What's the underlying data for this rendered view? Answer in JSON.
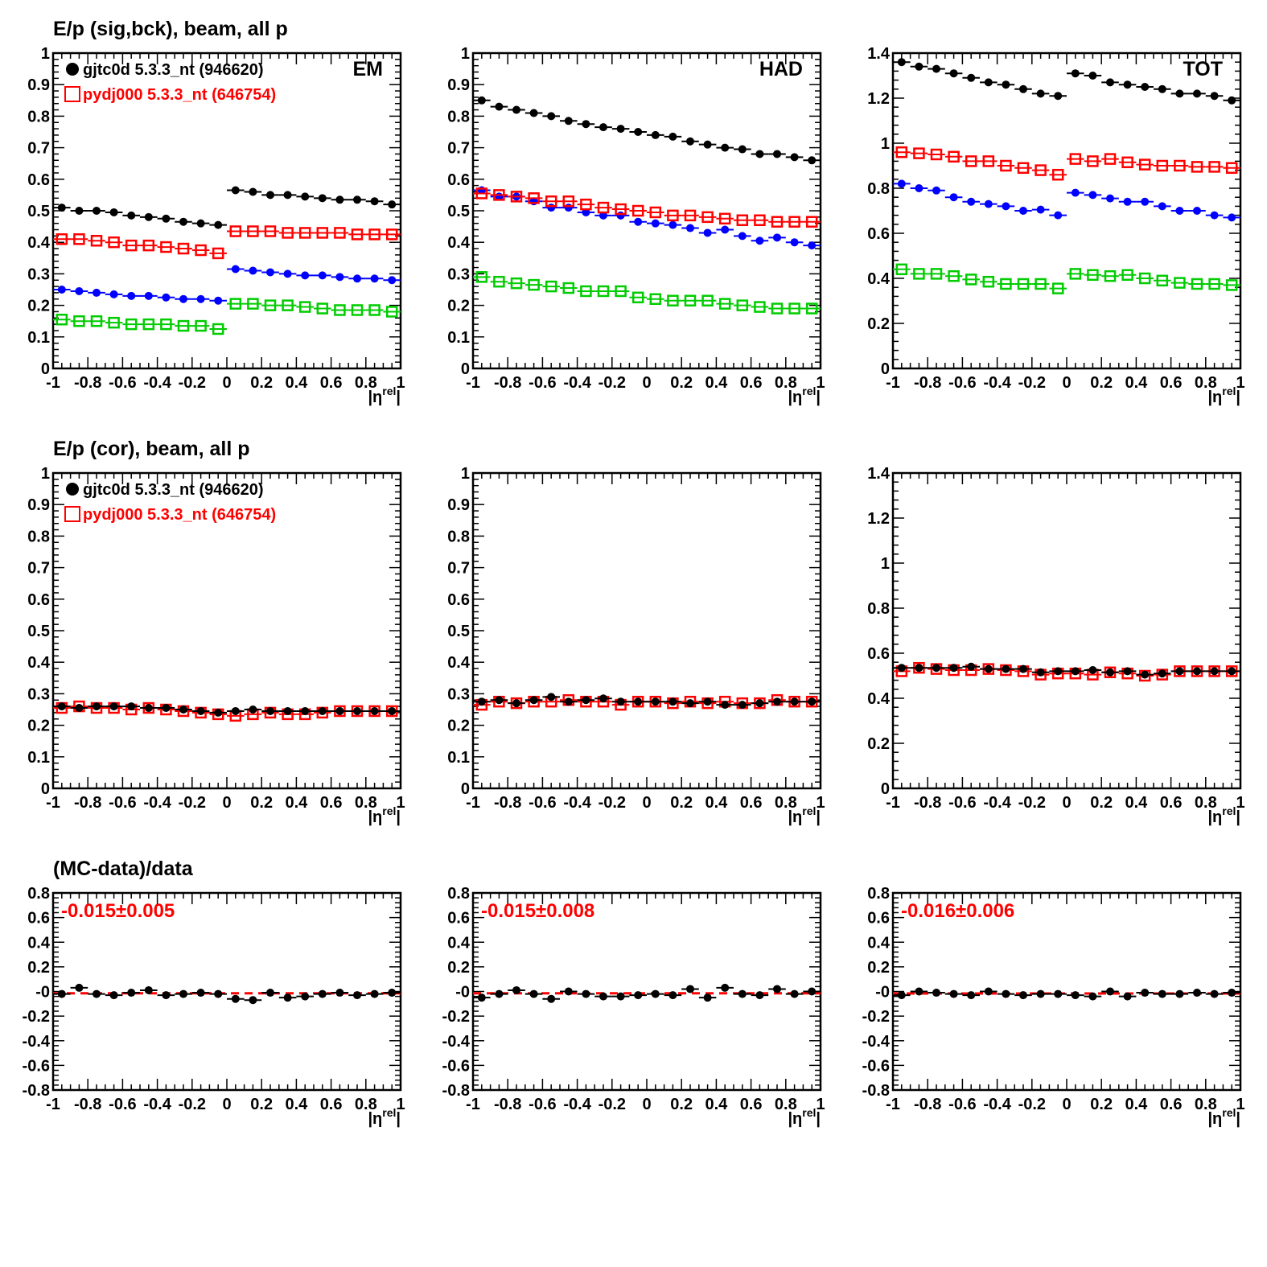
{
  "x_axis": {
    "range": [
      -1,
      1
    ],
    "tick_labels": [
      "-1",
      "-0.8",
      "-0.6",
      "-0.4",
      "-0.2",
      "0",
      "0.2",
      "0.4",
      "0.6",
      "0.8",
      "1"
    ],
    "label_main": "|η",
    "label_sup": "rel",
    "label_end": "|"
  },
  "colors": {
    "data": "#000000",
    "mc": "#ff0000",
    "sig": "#0000ff",
    "bck": "#00cc00"
  },
  "legend": {
    "data_label": "gjtc0d 5.3.3_nt (946620)",
    "mc_label": "pydj000 5.3.3_nt (646754)"
  },
  "row_titles": [
    "E/p (sig,bck), beam, all p",
    "E/p (cor), beam, all p",
    "(MC-data)/data"
  ],
  "corner_labels": [
    "EM",
    "HAD",
    "TOT"
  ],
  "y_axes": {
    "unit": {
      "range": [
        0,
        1
      ],
      "tick_labels": [
        "0",
        "0.1",
        "0.2",
        "0.3",
        "0.4",
        "0.5",
        "0.6",
        "0.7",
        "0.8",
        "0.9",
        "1"
      ]
    },
    "tot": {
      "range": [
        0,
        1.4
      ],
      "tick_labels": [
        "0",
        "0.2",
        "0.4",
        "0.6",
        "0.8",
        "1",
        "1.2",
        "1.4"
      ]
    },
    "ratio": {
      "range": [
        -0.8,
        0.8
      ],
      "tick_labels": [
        "-0.8",
        "-0.6",
        "-0.4",
        "-0.2",
        "-0",
        "0.2",
        "0.4",
        "0.6",
        "0.8"
      ]
    }
  },
  "ratio_results": [
    "-0.015±0.005",
    "-0.015±0.008",
    "-0.016±0.006"
  ],
  "chart_data": [
    {
      "type": "scatter",
      "panel": "EM",
      "row": 1,
      "ylim": [
        0,
        1
      ],
      "x": [
        -0.95,
        -0.85,
        -0.75,
        -0.65,
        -0.55,
        -0.45,
        -0.35,
        -0.25,
        -0.15,
        -0.05,
        0.05,
        0.15,
        0.25,
        0.35,
        0.45,
        0.55,
        0.65,
        0.75,
        0.85,
        0.95
      ],
      "series": [
        {
          "name": "gjtc0d 5.3.3_nt (946620)",
          "role": "data",
          "values": [
            0.51,
            0.5,
            0.5,
            0.495,
            0.485,
            0.48,
            0.475,
            0.465,
            0.46,
            0.455,
            0.565,
            0.56,
            0.55,
            0.55,
            0.545,
            0.54,
            0.535,
            0.535,
            0.53,
            0.52
          ]
        },
        {
          "name": "pydj000 5.3.3_nt (646754)",
          "role": "mc",
          "values": [
            0.41,
            0.41,
            0.405,
            0.4,
            0.39,
            0.39,
            0.385,
            0.38,
            0.375,
            0.365,
            0.435,
            0.435,
            0.435,
            0.43,
            0.43,
            0.43,
            0.43,
            0.425,
            0.425,
            0.425
          ]
        },
        {
          "role": "sig",
          "values": [
            0.25,
            0.245,
            0.24,
            0.235,
            0.23,
            0.23,
            0.225,
            0.22,
            0.22,
            0.215,
            0.315,
            0.31,
            0.305,
            0.3,
            0.295,
            0.295,
            0.29,
            0.285,
            0.285,
            0.28
          ]
        },
        {
          "role": "bck",
          "values": [
            0.155,
            0.15,
            0.15,
            0.145,
            0.14,
            0.14,
            0.14,
            0.135,
            0.135,
            0.125,
            0.205,
            0.205,
            0.2,
            0.2,
            0.195,
            0.19,
            0.185,
            0.185,
            0.185,
            0.18
          ]
        }
      ]
    },
    {
      "type": "scatter",
      "panel": "HAD",
      "row": 1,
      "ylim": [
        0,
        1
      ],
      "x": [
        -0.95,
        -0.85,
        -0.75,
        -0.65,
        -0.55,
        -0.45,
        -0.35,
        -0.25,
        -0.15,
        -0.05,
        0.05,
        0.15,
        0.25,
        0.35,
        0.45,
        0.55,
        0.65,
        0.75,
        0.85,
        0.95
      ],
      "series": [
        {
          "name": "gjtc0d 5.3.3_nt (946620)",
          "role": "data",
          "values": [
            0.85,
            0.83,
            0.82,
            0.81,
            0.8,
            0.785,
            0.775,
            0.765,
            0.76,
            0.75,
            0.74,
            0.735,
            0.72,
            0.71,
            0.7,
            0.695,
            0.68,
            0.68,
            0.67,
            0.66
          ]
        },
        {
          "name": "pydj000 5.3.3_nt (646754)",
          "role": "mc",
          "values": [
            0.555,
            0.55,
            0.545,
            0.54,
            0.53,
            0.53,
            0.52,
            0.51,
            0.505,
            0.5,
            0.495,
            0.485,
            0.485,
            0.48,
            0.475,
            0.47,
            0.47,
            0.465,
            0.465,
            0.465
          ]
        },
        {
          "role": "sig",
          "values": [
            0.565,
            0.545,
            0.545,
            0.53,
            0.51,
            0.51,
            0.495,
            0.485,
            0.485,
            0.465,
            0.46,
            0.455,
            0.445,
            0.43,
            0.44,
            0.42,
            0.405,
            0.415,
            0.4,
            0.39
          ]
        },
        {
          "role": "bck",
          "values": [
            0.29,
            0.275,
            0.27,
            0.265,
            0.26,
            0.255,
            0.245,
            0.245,
            0.245,
            0.225,
            0.22,
            0.215,
            0.215,
            0.215,
            0.205,
            0.2,
            0.195,
            0.19,
            0.19,
            0.19
          ]
        }
      ]
    },
    {
      "type": "scatter",
      "panel": "TOT",
      "row": 1,
      "ylim": [
        0,
        1.4
      ],
      "x": [
        -0.95,
        -0.85,
        -0.75,
        -0.65,
        -0.55,
        -0.45,
        -0.35,
        -0.25,
        -0.15,
        -0.05,
        0.05,
        0.15,
        0.25,
        0.35,
        0.45,
        0.55,
        0.65,
        0.75,
        0.85,
        0.95
      ],
      "series": [
        {
          "name": "gjtc0d 5.3.3_nt (946620)",
          "role": "data",
          "values": [
            1.36,
            1.34,
            1.33,
            1.31,
            1.29,
            1.27,
            1.26,
            1.24,
            1.22,
            1.21,
            1.31,
            1.3,
            1.27,
            1.26,
            1.25,
            1.24,
            1.22,
            1.22,
            1.21,
            1.19
          ]
        },
        {
          "name": "pydj000 5.3.3_nt (646754)",
          "role": "mc",
          "values": [
            0.96,
            0.955,
            0.95,
            0.94,
            0.92,
            0.92,
            0.9,
            0.89,
            0.88,
            0.86,
            0.93,
            0.92,
            0.93,
            0.915,
            0.905,
            0.9,
            0.9,
            0.895,
            0.895,
            0.89
          ]
        },
        {
          "role": "sig",
          "values": [
            0.82,
            0.8,
            0.79,
            0.76,
            0.74,
            0.73,
            0.72,
            0.7,
            0.705,
            0.68,
            0.78,
            0.77,
            0.755,
            0.74,
            0.74,
            0.72,
            0.7,
            0.7,
            0.68,
            0.67
          ]
        },
        {
          "role": "bck",
          "values": [
            0.44,
            0.42,
            0.42,
            0.41,
            0.395,
            0.385,
            0.375,
            0.375,
            0.375,
            0.355,
            0.42,
            0.415,
            0.41,
            0.415,
            0.4,
            0.39,
            0.38,
            0.375,
            0.375,
            0.37
          ]
        }
      ]
    },
    {
      "type": "scatter",
      "panel": "EM",
      "row": 2,
      "ylim": [
        0,
        1
      ],
      "x": [
        -0.95,
        -0.85,
        -0.75,
        -0.65,
        -0.55,
        -0.45,
        -0.35,
        -0.25,
        -0.15,
        -0.05,
        0.05,
        0.15,
        0.25,
        0.35,
        0.45,
        0.55,
        0.65,
        0.75,
        0.85,
        0.95
      ],
      "series": [
        {
          "name": "gjtc0d 5.3.3_nt (946620)",
          "role": "data",
          "values": [
            0.26,
            0.255,
            0.26,
            0.26,
            0.26,
            0.255,
            0.255,
            0.25,
            0.245,
            0.24,
            0.245,
            0.25,
            0.245,
            0.245,
            0.245,
            0.245,
            0.245,
            0.245,
            0.245,
            0.245
          ]
        },
        {
          "name": "pydj000 5.3.3_nt (646754)",
          "role": "mc",
          "values": [
            0.255,
            0.26,
            0.255,
            0.255,
            0.25,
            0.255,
            0.25,
            0.245,
            0.24,
            0.235,
            0.23,
            0.235,
            0.24,
            0.235,
            0.235,
            0.24,
            0.245,
            0.245,
            0.245,
            0.245
          ]
        }
      ]
    },
    {
      "type": "scatter",
      "panel": "HAD",
      "row": 2,
      "ylim": [
        0,
        1
      ],
      "x": [
        -0.95,
        -0.85,
        -0.75,
        -0.65,
        -0.55,
        -0.45,
        -0.35,
        -0.25,
        -0.15,
        -0.05,
        0.05,
        0.15,
        0.25,
        0.35,
        0.45,
        0.55,
        0.65,
        0.75,
        0.85,
        0.95
      ],
      "series": [
        {
          "name": "gjtc0d 5.3.3_nt (946620)",
          "role": "data",
          "values": [
            0.275,
            0.28,
            0.27,
            0.28,
            0.29,
            0.275,
            0.28,
            0.285,
            0.275,
            0.275,
            0.275,
            0.275,
            0.27,
            0.275,
            0.265,
            0.265,
            0.27,
            0.275,
            0.275,
            0.275
          ]
        },
        {
          "name": "pydj000 5.3.3_nt (646754)",
          "role": "mc",
          "values": [
            0.265,
            0.275,
            0.27,
            0.275,
            0.275,
            0.28,
            0.275,
            0.275,
            0.265,
            0.275,
            0.275,
            0.27,
            0.275,
            0.27,
            0.275,
            0.27,
            0.27,
            0.28,
            0.275,
            0.275
          ]
        }
      ]
    },
    {
      "type": "scatter",
      "panel": "TOT",
      "row": 2,
      "ylim": [
        0,
        1.4
      ],
      "x": [
        -0.95,
        -0.85,
        -0.75,
        -0.65,
        -0.55,
        -0.45,
        -0.35,
        -0.25,
        -0.15,
        -0.05,
        0.05,
        0.15,
        0.25,
        0.35,
        0.45,
        0.55,
        0.65,
        0.75,
        0.85,
        0.95
      ],
      "series": [
        {
          "name": "gjtc0d 5.3.3_nt (946620)",
          "role": "data",
          "values": [
            0.535,
            0.535,
            0.535,
            0.535,
            0.54,
            0.53,
            0.53,
            0.53,
            0.515,
            0.52,
            0.52,
            0.525,
            0.515,
            0.52,
            0.505,
            0.51,
            0.52,
            0.52,
            0.52,
            0.52
          ]
        },
        {
          "name": "pydj000 5.3.3_nt (646754)",
          "role": "mc",
          "values": [
            0.52,
            0.535,
            0.53,
            0.525,
            0.525,
            0.53,
            0.525,
            0.52,
            0.505,
            0.51,
            0.51,
            0.505,
            0.515,
            0.51,
            0.5,
            0.505,
            0.52,
            0.52,
            0.52,
            0.52
          ]
        }
      ]
    },
    {
      "type": "scatter",
      "panel": "EM",
      "row": 3,
      "ylim": [
        -0.8,
        0.8
      ],
      "x": [
        -0.95,
        -0.85,
        -0.75,
        -0.65,
        -0.55,
        -0.45,
        -0.35,
        -0.25,
        -0.15,
        -0.05,
        0.05,
        0.15,
        0.25,
        0.35,
        0.45,
        0.55,
        0.65,
        0.75,
        0.85,
        0.95
      ],
      "fit": -0.015,
      "series": [
        {
          "role": "data",
          "values": [
            -0.02,
            0.03,
            -0.02,
            -0.03,
            -0.01,
            0.01,
            -0.03,
            -0.02,
            -0.01,
            -0.02,
            -0.06,
            -0.07,
            -0.01,
            -0.05,
            -0.04,
            -0.02,
            -0.01,
            -0.03,
            -0.02,
            -0.01
          ]
        }
      ]
    },
    {
      "type": "scatter",
      "panel": "HAD",
      "row": 3,
      "ylim": [
        -0.8,
        0.8
      ],
      "x": [
        -0.95,
        -0.85,
        -0.75,
        -0.65,
        -0.55,
        -0.45,
        -0.35,
        -0.25,
        -0.15,
        -0.05,
        0.05,
        0.15,
        0.25,
        0.35,
        0.45,
        0.55,
        0.65,
        0.75,
        0.85,
        0.95
      ],
      "fit": -0.015,
      "series": [
        {
          "role": "data",
          "values": [
            -0.05,
            -0.02,
            0.01,
            -0.02,
            -0.06,
            0.0,
            -0.02,
            -0.04,
            -0.04,
            -0.03,
            -0.02,
            -0.03,
            0.02,
            -0.05,
            0.03,
            -0.02,
            -0.03,
            0.02,
            -0.02,
            0.0
          ]
        }
      ]
    },
    {
      "type": "scatter",
      "panel": "TOT",
      "row": 3,
      "ylim": [
        -0.8,
        0.8
      ],
      "x": [
        -0.95,
        -0.85,
        -0.75,
        -0.65,
        -0.55,
        -0.45,
        -0.35,
        -0.25,
        -0.15,
        -0.05,
        0.05,
        0.15,
        0.25,
        0.35,
        0.45,
        0.55,
        0.65,
        0.75,
        0.85,
        0.95
      ],
      "fit": -0.016,
      "series": [
        {
          "role": "data",
          "values": [
            -0.03,
            0.0,
            -0.01,
            -0.02,
            -0.03,
            0.0,
            -0.02,
            -0.03,
            -0.02,
            -0.02,
            -0.03,
            -0.04,
            0.0,
            -0.04,
            -0.01,
            -0.02,
            -0.02,
            -0.01,
            -0.02,
            -0.01
          ]
        }
      ]
    }
  ]
}
